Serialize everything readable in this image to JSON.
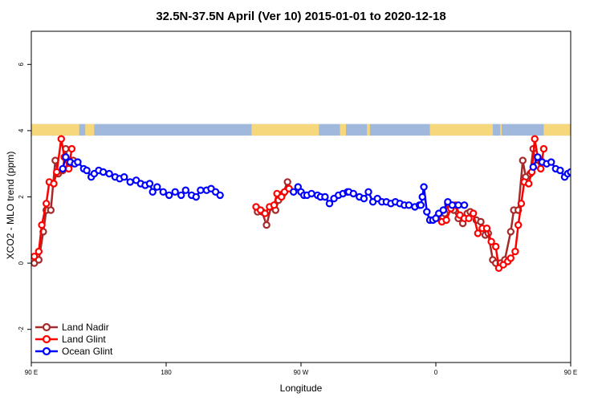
{
  "chart_data": {
    "type": "line",
    "title": "32.5N-37.5N April (Ver 10)   2015-01-01 to 2020-12-18",
    "xlabel": "Longitude",
    "ylabel": "XCO2 - MLO trend (ppm)",
    "xlim": [
      90,
      450
    ],
    "ylim": [
      -3,
      7
    ],
    "x_ticks": [
      {
        "value": 90,
        "label": "90 E"
      },
      {
        "value": 180,
        "label": "180"
      },
      {
        "value": 270,
        "label": "90 W"
      },
      {
        "value": 360,
        "label": "0"
      },
      {
        "value": 450,
        "label": "90 E"
      },
      {
        "value": 540,
        "label": "180"
      }
    ],
    "y_ticks": [
      {
        "value": -2,
        "label": "-2"
      },
      {
        "value": 0,
        "label": "0"
      },
      {
        "value": 2,
        "label": "2"
      },
      {
        "value": 4,
        "label": "4"
      },
      {
        "value": 6,
        "label": "6"
      }
    ],
    "legend_position": "bottom-left",
    "land_ocean_band": {
      "y_range": [
        3.85,
        4.2
      ],
      "land_color": "#f7d77b",
      "ocean_color": "#9fb8dc",
      "land_lon_ranges": [
        [
          90,
          122
        ],
        [
          126,
          132
        ],
        [
          237,
          282
        ],
        [
          296,
          300
        ],
        [
          314,
          316
        ],
        [
          356,
          398
        ],
        [
          403,
          404
        ],
        [
          432,
          452
        ],
        [
          456,
          486
        ],
        [
          489,
          490
        ],
        [
          509,
          544
        ]
      ]
    },
    "series": [
      {
        "name": "Land Nadir",
        "color": "#a52a2a",
        "segments": [
          [
            [
              92,
              0.0
            ],
            [
              95,
              0.1
            ],
            [
              98,
              0.95
            ],
            [
              100,
              1.6
            ],
            [
              103,
              1.6
            ],
            [
              106,
              3.1
            ],
            [
              108,
              2.7
            ],
            [
              111,
              2.8
            ],
            [
              113,
              3.45
            ],
            [
              115,
              2.9
            ],
            [
              118,
              3.1
            ]
          ],
          [
            [
              241,
              1.55
            ],
            [
              244,
              1.55
            ],
            [
              247,
              1.15
            ],
            [
              250,
              1.7
            ],
            [
              253,
              1.6
            ],
            [
              255,
              1.9
            ],
            [
              258,
              2.1
            ],
            [
              261,
              2.45
            ]
          ],
          [
            [
              362,
              1.35
            ],
            [
              364,
              1.35
            ],
            [
              366,
              1.5
            ],
            [
              368,
              1.8
            ],
            [
              372,
              1.6
            ],
            [
              375,
              1.35
            ],
            [
              378,
              1.2
            ],
            [
              381,
              1.5
            ],
            [
              383,
              1.55
            ],
            [
              387,
              1.3
            ],
            [
              390,
              1.25
            ],
            [
              393,
              0.85
            ],
            [
              395,
              0.9
            ],
            [
              398,
              0.1
            ],
            [
              400,
              0.0
            ],
            [
              403,
              0.0
            ],
            [
              406,
              0.1
            ],
            [
              410,
              0.95
            ],
            [
              412,
              1.6
            ],
            [
              415,
              1.6
            ],
            [
              418,
              3.1
            ],
            [
              420,
              2.6
            ],
            [
              423,
              2.7
            ],
            [
              425,
              3.45
            ],
            [
              427,
              2.95
            ],
            [
              430,
              3.1
            ]
          ]
        ]
      },
      {
        "name": "Land Glint",
        "color": "#ff0000",
        "segments": [
          [
            [
              92,
              0.2
            ],
            [
              95,
              0.35
            ],
            [
              97,
              1.15
            ],
            [
              100,
              1.8
            ],
            [
              102,
              2.45
            ],
            [
              105,
              2.4
            ],
            [
              107,
              2.75
            ],
            [
              110,
              3.75
            ],
            [
              112,
              3.2
            ],
            [
              115,
              2.85
            ],
            [
              117,
              3.45
            ]
          ],
          [
            [
              240,
              1.7
            ],
            [
              243,
              1.6
            ],
            [
              246,
              1.5
            ],
            [
              249,
              1.7
            ],
            [
              252,
              1.75
            ],
            [
              254,
              2.1
            ],
            [
              257,
              2.0
            ],
            [
              259,
              2.15
            ],
            [
              262,
              2.25
            ]
          ],
          [
            [
              361,
              1.4
            ],
            [
              364,
              1.25
            ],
            [
              367,
              1.3
            ],
            [
              370,
              1.65
            ],
            [
              373,
              1.75
            ],
            [
              376,
              1.45
            ],
            [
              379,
              1.35
            ],
            [
              382,
              1.35
            ],
            [
              385,
              1.5
            ],
            [
              388,
              0.9
            ],
            [
              391,
              1.05
            ],
            [
              394,
              1.05
            ],
            [
              397,
              0.65
            ],
            [
              400,
              0.5
            ],
            [
              402,
              -0.15
            ],
            [
              405,
              -0.05
            ],
            [
              408,
              0.05
            ],
            [
              410,
              0.15
            ],
            [
              413,
              0.35
            ],
            [
              415,
              1.15
            ],
            [
              417,
              1.8
            ],
            [
              419,
              2.45
            ],
            [
              422,
              2.4
            ],
            [
              424,
              2.75
            ],
            [
              426,
              3.75
            ],
            [
              428,
              3.2
            ],
            [
              430,
              2.85
            ],
            [
              432,
              3.45
            ]
          ]
        ]
      },
      {
        "name": "Ocean Glint",
        "color": "#0000ff",
        "segments": [
          [
            [
              111,
              2.85
            ],
            [
              113,
              3.2
            ],
            [
              116,
              3.05
            ],
            [
              119,
              3.0
            ],
            [
              121,
              3.05
            ],
            [
              125,
              2.85
            ],
            [
              127,
              2.8
            ],
            [
              130,
              2.6
            ],
            [
              132,
              2.7
            ],
            [
              135,
              2.8
            ],
            [
              138,
              2.75
            ],
            [
              142,
              2.7
            ],
            [
              146,
              2.6
            ],
            [
              149,
              2.55
            ],
            [
              152,
              2.6
            ],
            [
              156,
              2.45
            ],
            [
              160,
              2.5
            ],
            [
              163,
              2.4
            ],
            [
              166,
              2.35
            ],
            [
              169,
              2.4
            ],
            [
              171,
              2.15
            ],
            [
              174,
              2.3
            ],
            [
              178,
              2.15
            ],
            [
              182,
              2.05
            ],
            [
              186,
              2.15
            ],
            [
              190,
              2.05
            ],
            [
              193,
              2.2
            ],
            [
              197,
              2.05
            ],
            [
              200,
              2.0
            ],
            [
              203,
              2.2
            ],
            [
              207,
              2.2
            ],
            [
              210,
              2.25
            ],
            [
              213,
              2.15
            ],
            [
              216,
              2.05
            ]
          ],
          [
            [
              265,
              2.15
            ],
            [
              268,
              2.3
            ],
            [
              270,
              2.15
            ],
            [
              272,
              2.05
            ],
            [
              274,
              2.05
            ],
            [
              277,
              2.1
            ],
            [
              281,
              2.05
            ],
            [
              283,
              2.0
            ],
            [
              286,
              2.0
            ],
            [
              289,
              1.8
            ],
            [
              292,
              1.95
            ],
            [
              295,
              2.05
            ],
            [
              298,
              2.1
            ],
            [
              301,
              2.15
            ],
            [
              302,
              2.15
            ],
            [
              305,
              2.1
            ],
            [
              309,
              2.0
            ],
            [
              312,
              1.95
            ],
            [
              315,
              2.15
            ],
            [
              318,
              1.85
            ],
            [
              321,
              1.95
            ],
            [
              324,
              1.85
            ],
            [
              327,
              1.85
            ],
            [
              330,
              1.8
            ],
            [
              333,
              1.85
            ],
            [
              336,
              1.8
            ],
            [
              339,
              1.75
            ],
            [
              342,
              1.75
            ],
            [
              346,
              1.7
            ],
            [
              349,
              1.75
            ],
            [
              350,
              1.75
            ],
            [
              351,
              2.0
            ],
            [
              352,
              2.3
            ],
            [
              354,
              1.55
            ],
            [
              356,
              1.3
            ],
            [
              358,
              1.3
            ],
            [
              360,
              1.35
            ],
            [
              362,
              1.5
            ],
            [
              365,
              1.6
            ],
            [
              368,
              1.85
            ],
            [
              371,
              1.75
            ],
            [
              375,
              1.75
            ],
            [
              379,
              1.75
            ]
          ],
          [
            [
              425,
              2.9
            ],
            [
              428,
              3.2
            ],
            [
              431,
              3.05
            ],
            [
              434,
              3.0
            ],
            [
              437,
              3.05
            ],
            [
              440,
              2.85
            ],
            [
              443,
              2.8
            ],
            [
              446,
              2.6
            ],
            [
              448,
              2.7
            ],
            [
              450,
              2.75
            ]
          ]
        ]
      }
    ]
  }
}
